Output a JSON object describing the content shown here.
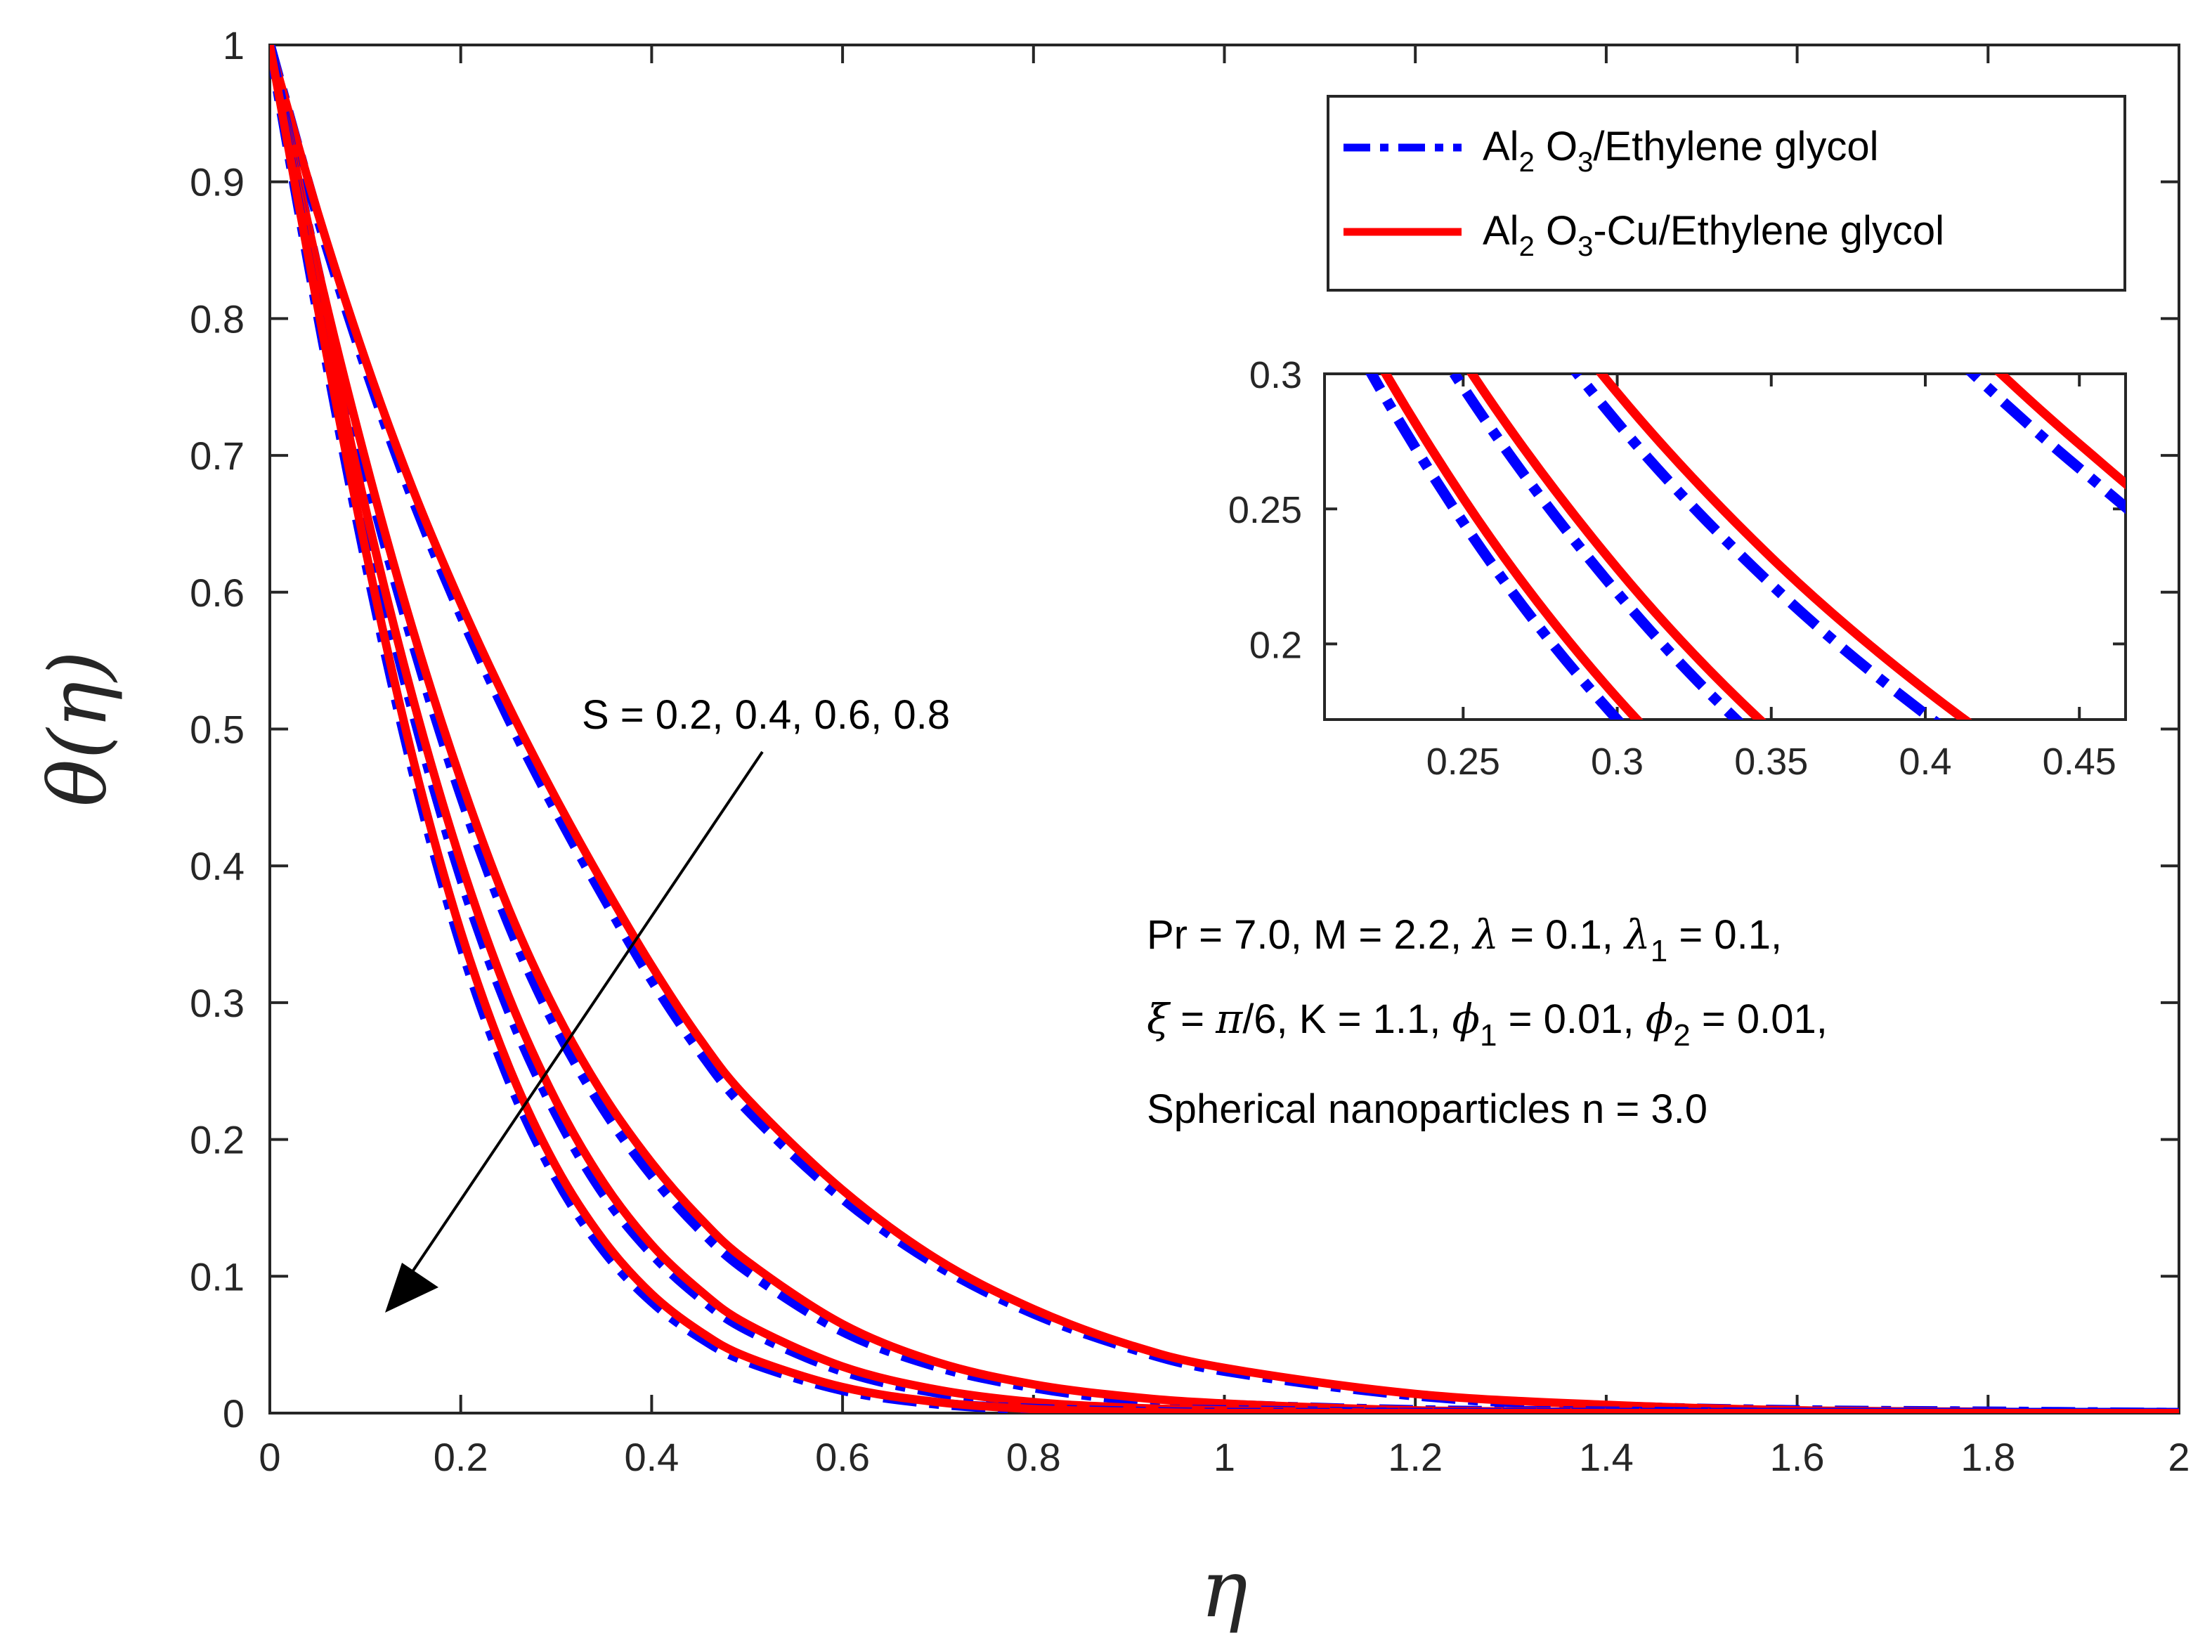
{
  "chart_data": {
    "type": "line",
    "xlabel": "η",
    "ylabel": "θ(η)",
    "xlim": [
      0,
      2
    ],
    "ylim": [
      0,
      1
    ],
    "xticks": [
      "0",
      "0.2",
      "0.4",
      "0.6",
      "0.8",
      "1",
      "1.2",
      "1.4",
      "1.6",
      "1.8",
      "2"
    ],
    "yticks": [
      "0",
      "0.1",
      "0.2",
      "0.3",
      "0.4",
      "0.5",
      "0.6",
      "0.7",
      "0.8",
      "0.9",
      "1"
    ],
    "legend": {
      "placement": "top-right",
      "entries": [
        {
          "base": "Al",
          "sub1": "2",
          "mid": " O",
          "sub2": "3",
          "rest": "/Ethylene glycol",
          "color": "#0000ff",
          "style": "dashdot"
        },
        {
          "base": "Al",
          "sub1": "2",
          "mid": " O",
          "sub2": "3",
          "rest": "-Cu/Ethylene glycol",
          "color": "#ff0000",
          "style": "solid"
        }
      ]
    },
    "parameter_label": "S = 0.2, 0.4, 0.6, 0.8",
    "parameter_values": [
      0.2,
      0.4,
      0.6,
      0.8
    ],
    "x": [
      0,
      0.05,
      0.1,
      0.15,
      0.2,
      0.25,
      0.3,
      0.35,
      0.4,
      0.45,
      0.5,
      0.6,
      0.7,
      0.8,
      0.9,
      1.0,
      1.2,
      1.4,
      1.6,
      1.8,
      2.0
    ],
    "series": [
      {
        "name": "Al2O3/Ethylene glycol, S = 0.2",
        "color": "#0000ff",
        "style": "dashdot",
        "values": [
          1,
          0.875,
          0.765,
          0.668,
          0.584,
          0.508,
          0.44,
          0.377,
          0.317,
          0.265,
          0.222,
          0.157,
          0.108,
          0.073,
          0.048,
          0.031,
          0.013,
          0.005,
          0.002,
          0.001,
          0.0
        ]
      },
      {
        "name": "Al2O3-Cu/Ethylene glycol, S = 0.2",
        "color": "#ff0000",
        "style": "solid",
        "values": [
          1,
          0.878,
          0.77,
          0.675,
          0.592,
          0.517,
          0.449,
          0.386,
          0.327,
          0.274,
          0.23,
          0.163,
          0.112,
          0.076,
          0.05,
          0.033,
          0.014,
          0.006,
          0.002,
          0.001,
          0.0
        ]
      },
      {
        "name": "Al2O3/Ethylene glycol, S = 0.4",
        "color": "#0000ff",
        "style": "dashdot",
        "values": [
          1,
          0.835,
          0.69,
          0.563,
          0.452,
          0.358,
          0.282,
          0.222,
          0.174,
          0.135,
          0.104,
          0.06,
          0.034,
          0.019,
          0.01,
          0.006,
          0.002,
          0.001,
          0.0,
          0.0,
          0.0
        ]
      },
      {
        "name": "Al2O3-Cu/Ethylene glycol, S = 0.4",
        "color": "#ff0000",
        "style": "solid",
        "values": [
          1,
          0.838,
          0.697,
          0.572,
          0.463,
          0.369,
          0.293,
          0.232,
          0.183,
          0.143,
          0.111,
          0.065,
          0.037,
          0.021,
          0.012,
          0.007,
          0.002,
          0.001,
          0.0,
          0.0,
          0.0
        ]
      },
      {
        "name": "Al2O3/Ethylene glycol, S = 0.6",
        "color": "#0000ff",
        "style": "dashdot",
        "values": [
          1,
          0.82,
          0.655,
          0.513,
          0.392,
          0.295,
          0.219,
          0.16,
          0.117,
          0.085,
          0.061,
          0.031,
          0.015,
          0.007,
          0.003,
          0.002,
          0.0,
          0.0,
          0.0,
          0.0,
          0.0
        ]
      },
      {
        "name": "Al2O3-Cu/Ethylene glycol, S = 0.6",
        "color": "#ff0000",
        "style": "solid",
        "values": [
          1,
          0.824,
          0.662,
          0.522,
          0.403,
          0.305,
          0.228,
          0.168,
          0.123,
          0.09,
          0.065,
          0.034,
          0.017,
          0.008,
          0.004,
          0.002,
          0.0,
          0.0,
          0.0,
          0.0,
          0.0
        ]
      },
      {
        "name": "Al2O3/Ethylene glycol, S = 0.8",
        "color": "#0000ff",
        "style": "dashdot",
        "values": [
          1,
          0.805,
          0.625,
          0.47,
          0.343,
          0.245,
          0.172,
          0.119,
          0.082,
          0.056,
          0.038,
          0.017,
          0.007,
          0.003,
          0.001,
          0.0,
          0.0,
          0.0,
          0.0,
          0.0,
          0.0
        ]
      },
      {
        "name": "Al2O3-Cu/Ethylene glycol, S = 0.8",
        "color": "#ff0000",
        "style": "solid",
        "values": [
          1,
          0.809,
          0.632,
          0.478,
          0.352,
          0.254,
          0.18,
          0.126,
          0.087,
          0.06,
          0.041,
          0.019,
          0.008,
          0.003,
          0.001,
          0.0,
          0.0,
          0.0,
          0.0,
          0.0,
          0.0
        ]
      }
    ],
    "inset": {
      "xlim": [
        0.205,
        0.465
      ],
      "ylim": [
        0.172,
        0.3
      ],
      "xticks": [
        "0.25",
        "0.3",
        "0.35",
        "0.4",
        "0.45"
      ],
      "yticks": [
        "0.2",
        "0.25",
        "0.3"
      ]
    },
    "annotation_lines": [
      {
        "parts": [
          {
            "t": "Pr = 7.0, M = 2.2, "
          },
          {
            "t": "λ",
            "greek": true
          },
          {
            "t": " = 0.1, "
          },
          {
            "t": "λ",
            "greek": true
          },
          {
            "t": "1",
            "sub": true
          },
          {
            "t": " = 0.1,"
          }
        ]
      },
      {
        "parts": [
          {
            "t": "ξ",
            "greek": true
          },
          {
            "t": " = "
          },
          {
            "t": "π",
            "greek": true
          },
          {
            "t": "/6, K = 1.1, "
          },
          {
            "t": "ϕ",
            "greek": true
          },
          {
            "t": "1",
            "sub": true
          },
          {
            "t": " = 0.01, "
          },
          {
            "t": "ϕ",
            "greek": true
          },
          {
            "t": "2",
            "sub": true
          },
          {
            "t": " = 0.01,"
          }
        ]
      },
      {
        "parts": [
          {
            "t": "Spherical nanoparticles n = 3.0"
          }
        ]
      }
    ]
  }
}
